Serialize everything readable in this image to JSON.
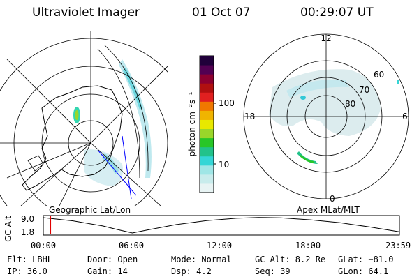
{
  "header": {
    "instrument": "Ultraviolet Imager",
    "date": "01 Oct 07",
    "time": "00:29:07 UT"
  },
  "maps": {
    "left_caption": "Geographic Lat/Lon",
    "right_caption": "Apex MLat/MLT",
    "mlt_labels": {
      "top": "12",
      "left": "18",
      "right": "6",
      "bottom": "0"
    },
    "lat_labels": [
      "60",
      "70",
      "80"
    ]
  },
  "colorbar": {
    "unit_label": "photon cm⁻²s⁻¹",
    "ticks": [
      "100",
      "10"
    ],
    "colors": [
      "#e8f4f4",
      "#c8ecec",
      "#9fe6e6",
      "#34d6d6",
      "#22c28a",
      "#28c628",
      "#9ad62a",
      "#e8e800",
      "#f0b400",
      "#f07800",
      "#e02020",
      "#b01010",
      "#8c0030",
      "#520052",
      "#20003a"
    ]
  },
  "altitude_plot": {
    "ylabel": "GC Alt",
    "y_ticks": [
      "9.0",
      "1.8"
    ],
    "x_ticks": [
      "00:00",
      "06:00",
      "12:00",
      "18:00",
      "23:59"
    ],
    "y_range": [
      1.8,
      9.0
    ],
    "x_range_hours": [
      0,
      24
    ],
    "current_hour": 0.485,
    "curve": [
      [
        0,
        9.0
      ],
      [
        2,
        7.5
      ],
      [
        4,
        5.1
      ],
      [
        5,
        3.4
      ],
      [
        6,
        1.8
      ],
      [
        7,
        3.2
      ],
      [
        9,
        5.8
      ],
      [
        11,
        7.6
      ],
      [
        13,
        8.7
      ],
      [
        14.5,
        9.1
      ],
      [
        16,
        8.9
      ],
      [
        18,
        8.0
      ],
      [
        20,
        6.6
      ],
      [
        22,
        4.6
      ],
      [
        23.98,
        2.4
      ]
    ]
  },
  "status": {
    "flt": "Flt: LBHL",
    "ip": "IP: 36.0",
    "door": "Door: Open",
    "gain": "Gain: 14",
    "mode": "Mode: Normal",
    "dsp": "Dsp:   4.2",
    "gcalt": "GC Alt: 8.2 Re",
    "seq": "Seq: 39",
    "glat": "GLat: −81.0",
    "glon": "GLon:  64.1"
  }
}
